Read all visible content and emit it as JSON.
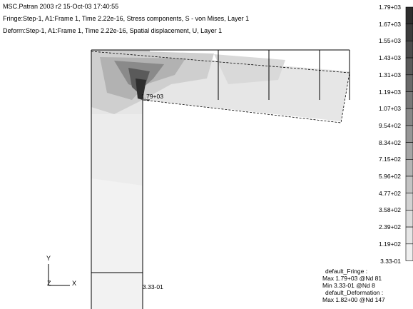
{
  "header": {
    "line1": "MSC.Patran 2003 r2 15-Oct-03 17:40:55",
    "line2": "Fringe:Step-1, A1:Frame 1, Time 2.22e-16, Stress components, S - von Mises, Layer 1",
    "line3": "Deform:Step-1, A1:Frame 1, Time 2.22e-16, Spatial displacement, U, Layer 1"
  },
  "legend": {
    "labels": [
      "1.79+03",
      "1.67+03",
      "1.55+03",
      "1.43+03",
      "1.31+03",
      "1.19+03",
      "1.07+03",
      "9.54+02",
      "8.34+02",
      "7.15+02",
      "5.96+02",
      "4.77+02",
      "3.58+02",
      "2.39+02",
      "1.19+02",
      "3.33-01"
    ],
    "colors": [
      "#2e2e2e",
      "#3c3c3c",
      "#4b4b4b",
      "#5a5a5a",
      "#696969",
      "#787878",
      "#878787",
      "#969696",
      "#a5a5a5",
      "#b4b4b4",
      "#c3c3c3",
      "#d2d2d2",
      "#dcdcdc",
      "#e6e6e6",
      "#efefef"
    ]
  },
  "model": {
    "max_label": "1.79+03",
    "min_label": "3.33-01"
  },
  "axes": {
    "y": "Y",
    "z": "Z",
    "x": "X"
  },
  "summary": {
    "l1": "default_Fringe :",
    "l2": "Max 1.79+03 @Nd 81",
    "l3": "Min 3.33-01 @Nd 8",
    "l4": "default_Deformation :",
    "l5": "Max 1.82+00 @Nd 147"
  }
}
